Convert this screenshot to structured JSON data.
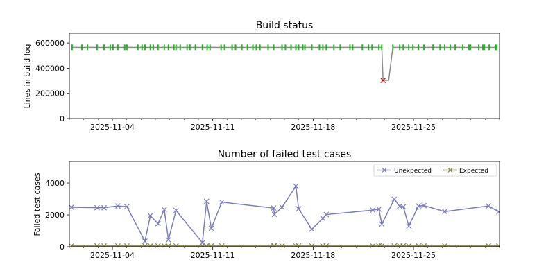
{
  "chart_data": [
    {
      "type": "line",
      "title": "Build status",
      "xlabel": "",
      "ylabel": "Lines in build log",
      "x_unit": "days since 2025-11-01",
      "xlim": [
        0,
        30
      ],
      "ylim": [
        0,
        678000
      ],
      "yticks": [
        0,
        200000,
        400000,
        600000
      ],
      "ytick_labels": [
        "0",
        "200000",
        "400000",
        "600000"
      ],
      "xticks": [
        3,
        10,
        17,
        24
      ],
      "xtick_labels": [
        "2025-11-04",
        "2025-11-11",
        "2025-11-18",
        "2025-11-25"
      ],
      "colors": {
        "line": "#8c8c8c",
        "ok": "#22b422",
        "failed": "#cc0000"
      },
      "ok_value": 566000,
      "ok_x": [
        0.19,
        0.87,
        1.26,
        1.93,
        2.42,
        2.85,
        3.04,
        3.38,
        3.86,
        4.01,
        4.78,
        5.07,
        5.27,
        5.65,
        5.85,
        6.18,
        6.62,
        6.91,
        7.29,
        7.44,
        7.73,
        8.21,
        8.41,
        8.79,
        9.28,
        9.61,
        9.81,
        10.58,
        10.82,
        11.35,
        11.59,
        12.03,
        12.42,
        12.8,
        13.04,
        13.29,
        13.86,
        14.25,
        14.83,
        15.07,
        15.46,
        15.8,
        15.99,
        16.28,
        16.43,
        16.91,
        17.44,
        17.68,
        17.92,
        18.45,
        18.89,
        19.57,
        19.76,
        20.43,
        20.87,
        21.11,
        21.59,
        21.79,
        22.56,
        23.04,
        23.29,
        23.67,
        23.96,
        24.35,
        24.73,
        25.36,
        25.85,
        26.18,
        26.57,
        26.91,
        27.44,
        27.87,
        27.97,
        28.55,
        28.84,
        28.94,
        29.28,
        29.71,
        29.81
      ],
      "failed": [
        {
          "x": 21.88,
          "y": 303000
        }
      ],
      "unmarked": [
        {
          "x": 22.27,
          "y": 303000
        }
      ]
    },
    {
      "type": "line",
      "title": "Number of failed test cases",
      "xlabel": "",
      "ylabel": "Failed test cases",
      "x_unit": "days since 2025-11-01",
      "xlim": [
        0,
        30
      ],
      "ylim": [
        0,
        5350
      ],
      "yticks": [
        0,
        2000,
        4000
      ],
      "ytick_labels": [
        "0",
        "2000",
        "4000"
      ],
      "xticks": [
        3,
        10,
        17,
        24
      ],
      "xtick_labels": [
        "2025-11-04",
        "2025-11-11",
        "2025-11-18",
        "2025-11-25"
      ],
      "legend_position": "top-right",
      "x": [
        0.14,
        1.93,
        2.42,
        3.38,
        4.01,
        5.27,
        5.65,
        6.18,
        6.62,
        6.91,
        7.44,
        9.28,
        9.57,
        9.9,
        10.63,
        14.25,
        14.3,
        14.83,
        15.8,
        15.99,
        16.91,
        17.68,
        17.92,
        21.16,
        21.59,
        21.79,
        22.66,
        23.04,
        23.29,
        23.67,
        24.35,
        24.73,
        26.18,
        29.23,
        29.95
      ],
      "series": [
        {
          "name": "Unexpected",
          "color": "#7b7bc0",
          "values": [
            2480,
            2450,
            2450,
            2560,
            2520,
            350,
            1950,
            1450,
            2330,
            430,
            2280,
            250,
            2850,
            1150,
            2800,
            2430,
            2030,
            2480,
            3800,
            2380,
            1100,
            1780,
            2020,
            2300,
            2360,
            1420,
            2980,
            2540,
            2510,
            1300,
            2560,
            2580,
            2210,
            2560,
            2190
          ]
        },
        {
          "name": "Expected",
          "color": "#7f7f3f",
          "values": [
            50,
            50,
            50,
            50,
            50,
            50,
            50,
            50,
            50,
            50,
            50,
            50,
            50,
            50,
            50,
            50,
            50,
            50,
            50,
            50,
            50,
            50,
            50,
            50,
            50,
            50,
            50,
            50,
            50,
            50,
            50,
            50,
            50,
            50,
            50
          ]
        }
      ]
    }
  ]
}
